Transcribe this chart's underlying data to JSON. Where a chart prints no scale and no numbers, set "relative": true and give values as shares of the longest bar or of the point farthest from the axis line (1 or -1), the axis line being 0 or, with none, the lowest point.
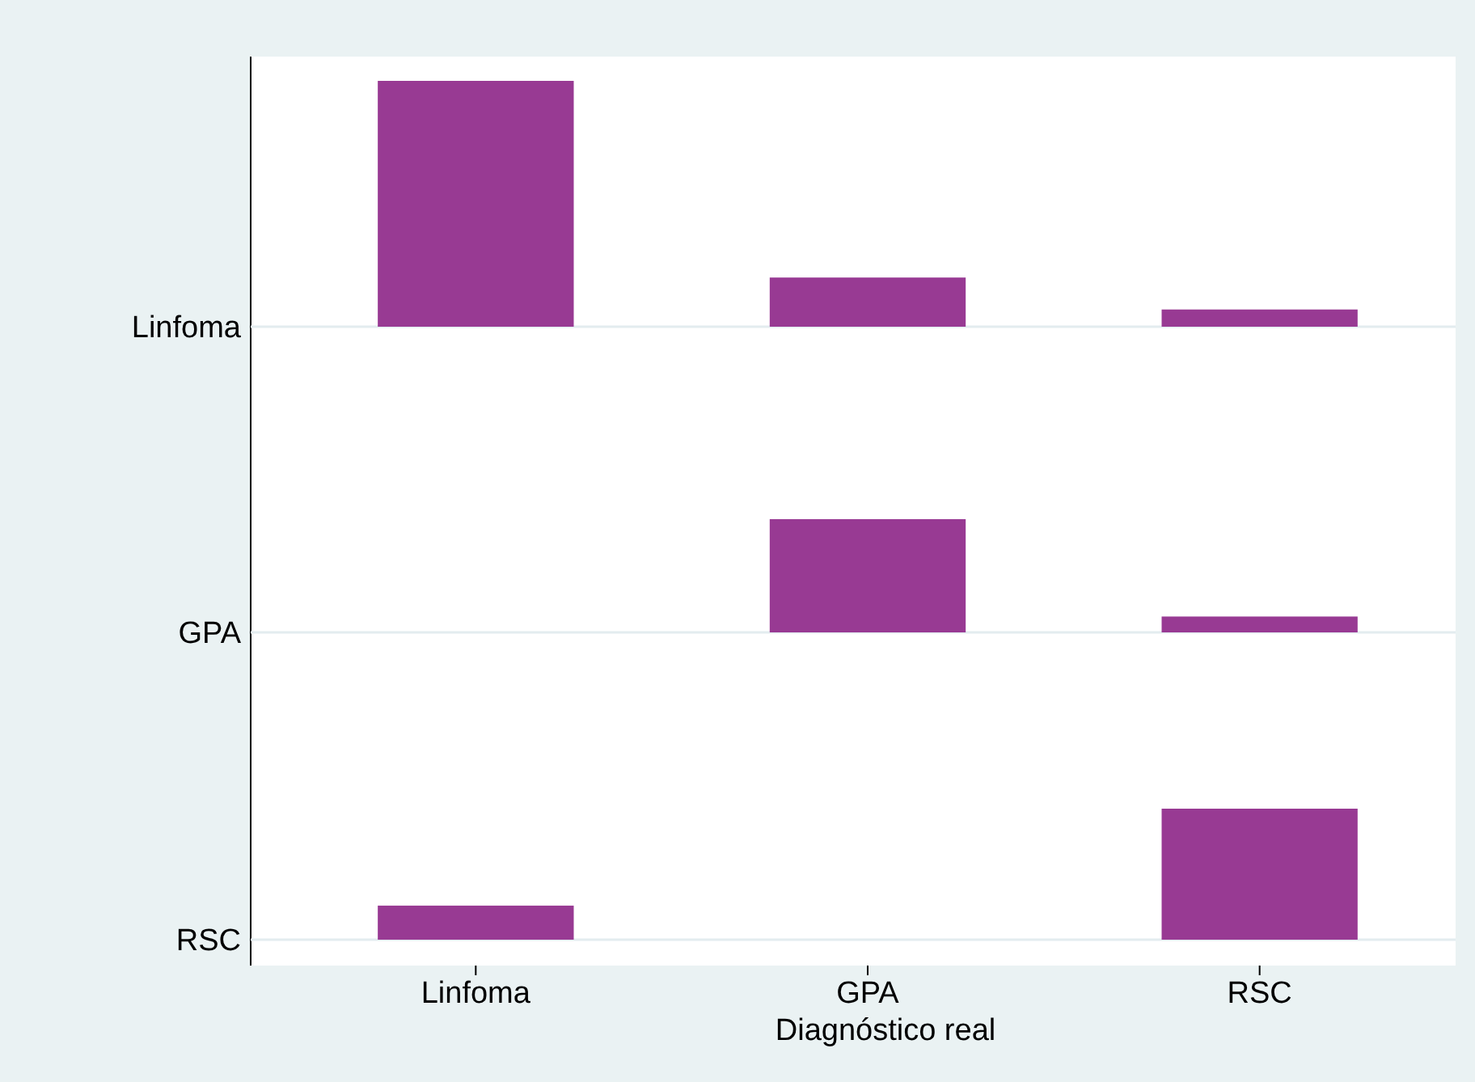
{
  "chart_data": [
    {
      "type": "bar",
      "categories": [
        null,
        null,
        null
      ],
      "values": [
        1,
        0.2,
        0.07
      ],
      "color": "#983a93",
      "relative": true,
      "ylabel": "Linfoma",
      "tick_labels": false
    },
    {
      "type": "bar",
      "categories": [
        null,
        null,
        null
      ],
      "values": [
        0,
        1,
        0.14
      ],
      "color": "#983a93",
      "relative": true,
      "ylabel": "GPA",
      "tick_labels": false
    },
    {
      "type": "bar",
      "categories": [
        "Linfoma",
        "GPA",
        "RSC"
      ],
      "values": [
        0.26,
        0,
        1
      ],
      "color": "#983a93",
      "relative": true,
      "ylabel": "RSC",
      "xlabel": "Diagnóstico real",
      "tick_labels": "x"
    }
  ]
}
